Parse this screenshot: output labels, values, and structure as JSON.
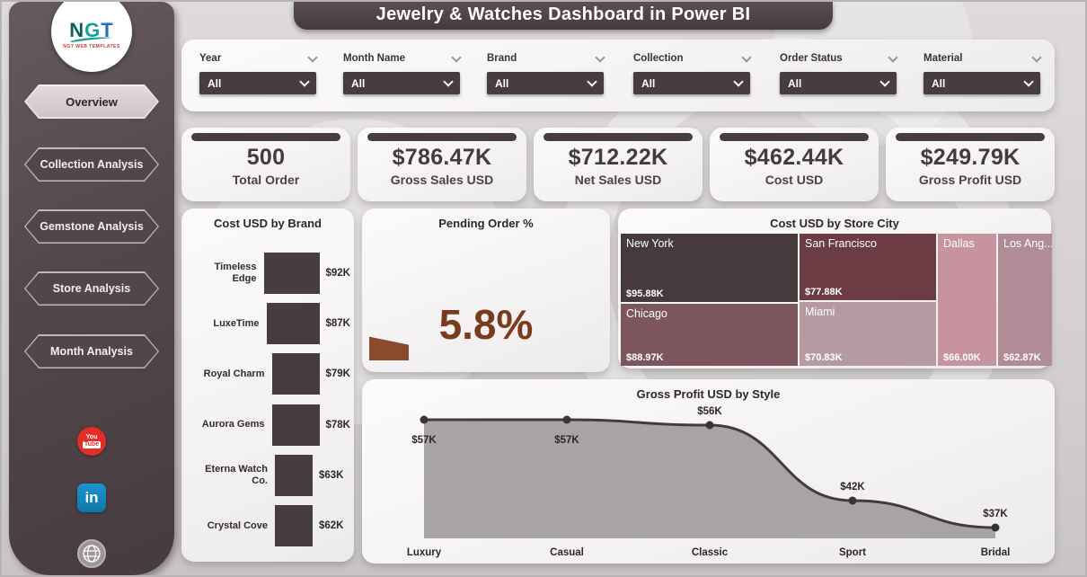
{
  "page": {
    "title": "Jewelry & Watches Dashboard in Power BI"
  },
  "logo": {
    "letters": [
      "N",
      "G",
      "T"
    ],
    "colors": {
      "n": "#0d5c55",
      "g": "#16a096",
      "t": "#1f70c1"
    },
    "subtext": "NGT WEB TEMPLATES"
  },
  "sidebar": {
    "items": [
      {
        "label": "Overview",
        "active": true
      },
      {
        "label": "Collection Analysis",
        "active": false
      },
      {
        "label": "Gemstone Analysis",
        "active": false
      },
      {
        "label": "Store Analysis",
        "active": false
      },
      {
        "label": "Month Analysis",
        "active": false
      }
    ],
    "social": [
      "youtube",
      "linkedin",
      "website"
    ]
  },
  "filters": {
    "items": [
      {
        "label": "Year",
        "value": "All"
      },
      {
        "label": "Month Name",
        "value": "All"
      },
      {
        "label": "Brand",
        "value": "All"
      },
      {
        "label": "Collection",
        "value": "All"
      },
      {
        "label": "Order Status",
        "value": "All"
      },
      {
        "label": "Material",
        "value": "All"
      }
    ]
  },
  "kpis": [
    {
      "value": "500",
      "label": "Total Order"
    },
    {
      "value": "$786.47K",
      "label": "Gross Sales USD"
    },
    {
      "value": "$712.22K",
      "label": "Net Sales USD"
    },
    {
      "value": "$462.44K",
      "label": "Cost USD"
    },
    {
      "value": "$249.79K",
      "label": "Gross Profit USD"
    }
  ],
  "colors": {
    "primary_dark": "#473c3f",
    "accent_rust": "#8a4a2e",
    "card_bg": "#f4f2f3",
    "area_gray": "#a8a4a5"
  },
  "chart_data": [
    {
      "type": "bar",
      "orientation": "horizontal",
      "title": "Cost USD by Brand",
      "categories": [
        "Timeless Edge",
        "LuxeTime",
        "Royal Charm",
        "Aurora Gems",
        "Eterna Watch Co.",
        "Crystal Cove"
      ],
      "values": [
        92,
        87,
        79,
        78,
        63,
        62
      ],
      "labels": [
        "$92K",
        "$87K",
        "$79K",
        "$78K",
        "$63K",
        "$62K"
      ],
      "bar_color": "#473c3f",
      "xlabel": "",
      "ylabel": ""
    },
    {
      "type": "gauge",
      "title": "Pending Order %",
      "value": 5.8,
      "label": "5.8%",
      "color": "#8a4a2e"
    },
    {
      "type": "treemap",
      "title": "Cost USD by Store City",
      "tiles": [
        {
          "name": "New York",
          "label": "$95.88K",
          "value": 95.88,
          "color": "#463a3d"
        },
        {
          "name": "San Francisco",
          "label": "$77.88K",
          "value": 77.88,
          "color": "#6c3c44"
        },
        {
          "name": "Dallas",
          "label": "$66.00K",
          "value": 66.0,
          "color": "#c6939f"
        },
        {
          "name": "Los Ang...",
          "label": "$62.87K",
          "value": 62.87,
          "color": "#b18c96"
        },
        {
          "name": "Chicago",
          "label": "$88.97K",
          "value": 88.97,
          "color": "#7c565c"
        },
        {
          "name": "Miami",
          "label": "$70.83K",
          "value": 70.83,
          "color": "#b59ba1"
        }
      ]
    },
    {
      "type": "area",
      "title": "Gross Profit USD by Style",
      "categories": [
        "Luxury",
        "Casual",
        "Classic",
        "Sport",
        "Bridal"
      ],
      "values": [
        57,
        57,
        56,
        42,
        37
      ],
      "labels": [
        "$57K",
        "$57K",
        "$56K",
        "$42K",
        "$37K"
      ],
      "label_pos": [
        "below",
        "below",
        "above",
        "above",
        "above"
      ],
      "ylim": [
        35,
        60
      ],
      "line_color": "#443a3c",
      "fill_color": "#a8a4a5",
      "xlabel": "",
      "ylabel": ""
    }
  ]
}
